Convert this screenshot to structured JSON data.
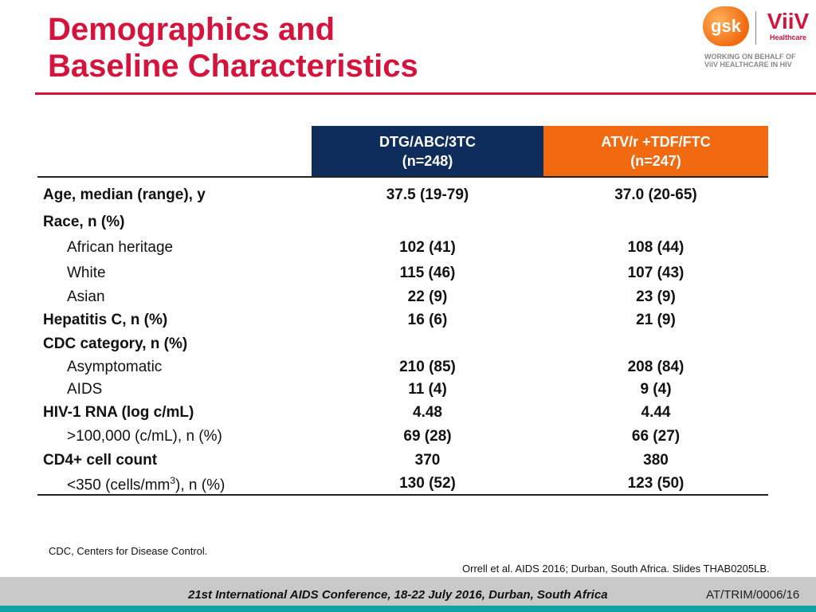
{
  "title": {
    "line1": "Demographics and",
    "line2": "Baseline Characteristics"
  },
  "logos": {
    "gsk": "gsk",
    "viiv": "ViiV",
    "viiv_sub": "Healthcare",
    "working_line1": "WORKING ON BEHALF OF",
    "working_line2": "ViiV HEALTHCARE IN HIV",
    "accent": "#d4143c"
  },
  "table": {
    "col_a": {
      "line1": "DTG/ABC/3TC",
      "line2": "(n=248)",
      "color": "#0f2d5a"
    },
    "col_b": {
      "line1": "ATV/r +TDF/FTC",
      "line2": "(n=247)",
      "color": "#f26a10"
    },
    "rows": [
      {
        "label": "Age, median (range), y",
        "a": "37.5 (19-79)",
        "b": "37.0 (20-65)"
      },
      {
        "label": "Race, n (%)",
        "a": "",
        "b": ""
      },
      {
        "label": "African heritage",
        "a": "102 (41)",
        "b": "108 (44)"
      },
      {
        "label": "White",
        "a": "115 (46)",
        "b": "107 (43)"
      },
      {
        "label": "Asian",
        "a": "22 (9)",
        "b": "23 (9)"
      },
      {
        "label": "Hepatitis C, n (%)",
        "a": "16 (6)",
        "b": "21 (9)"
      },
      {
        "label": "CDC category, n (%)",
        "a": "",
        "b": ""
      },
      {
        "label": "Asymptomatic",
        "a": "210 (85)",
        "b": "208 (84)"
      },
      {
        "label": "AIDS",
        "a": "11 (4)",
        "b": "9 (4)"
      },
      {
        "label": "HIV-1 RNA (log c/mL)",
        "a": "4.48",
        "b": "4.44"
      },
      {
        "label": ">100,000 (c/mL), n (%)",
        "a": "69 (28)",
        "b": "66 (27)"
      },
      {
        "label": "CD4+ cell count",
        "a": "370",
        "b": "380"
      },
      {
        "label_pre": "<350 (cells/mm",
        "label_sup": "3",
        "label_post": "), n (%)",
        "a": "130 (52)",
        "b": "123 (50)"
      }
    ]
  },
  "footnote": "CDC, Centers for Disease Control.",
  "reference": "Orrell et al. AIDS 2016; Durban, South Africa. Slides THAB0205LB.",
  "footer": {
    "conference": "21st International AIDS Conference, 18-22 July 2016, Durban, South Africa",
    "code": "AT/TRIM/0006/16"
  }
}
